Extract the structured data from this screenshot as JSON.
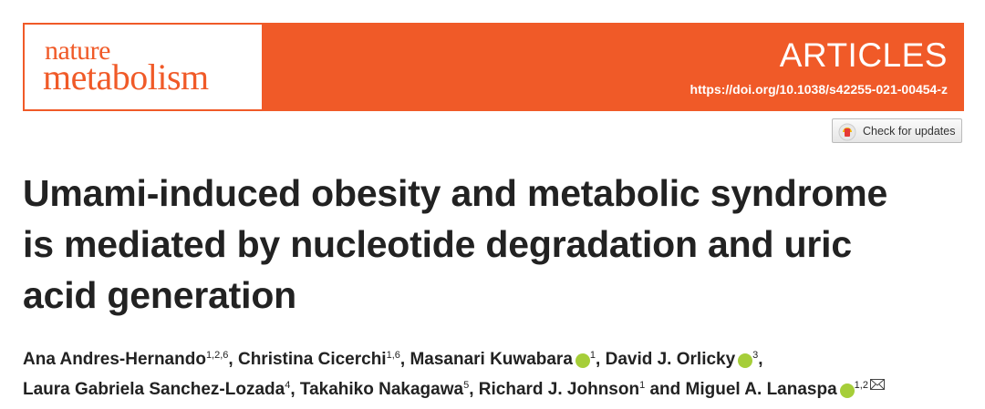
{
  "journal": {
    "line1": "nature",
    "line2": "metabolism"
  },
  "section": "ARTICLES",
  "doi": "https://doi.org/10.1038/s42255-021-00454-z",
  "check_updates": "Check for updates",
  "title_lines": [
    "Umami-induced obesity and metabolic syndrome",
    "is mediated by nucleotide degradation and uric",
    "acid generation"
  ],
  "author_lines": [
    [
      {
        "name": "Ana Andres-Hernando",
        "sup": "1,2,6",
        "sep": ", "
      },
      {
        "name": "Christina Cicerchi",
        "sup": "1,6",
        "sep": ", "
      },
      {
        "name": "Masanari Kuwabara",
        "orcid": true,
        "sup": "1",
        "sep": ", "
      },
      {
        "name": "David J. Orlicky",
        "orcid": true,
        "sup": "3",
        "sep": ","
      }
    ],
    [
      {
        "name": "Laura Gabriela Sanchez-Lozada",
        "sup": "4",
        "sep": ", "
      },
      {
        "name": "Takahiko Nakagawa",
        "sup": "5",
        "sep": ", "
      },
      {
        "name": "Richard J. Johnson",
        "sup": "1",
        "sep": " and "
      },
      {
        "name": "Miguel A. Lanaspa",
        "orcid": true,
        "sup": "1,2",
        "corresponding": true
      }
    ]
  ]
}
